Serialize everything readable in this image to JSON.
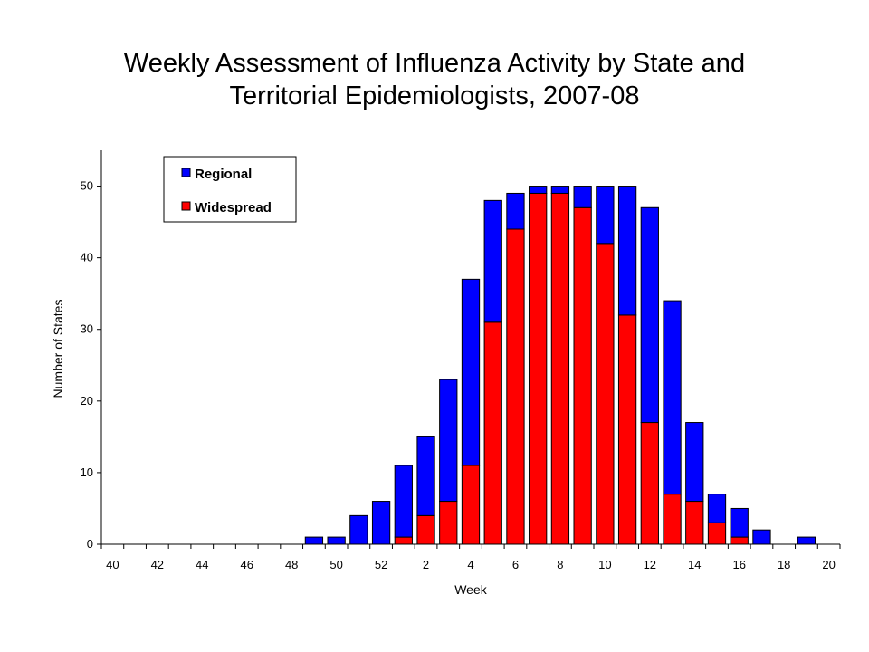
{
  "chart_data": {
    "type": "bar",
    "stacked": true,
    "title_line1": "Weekly Assessment of Influenza Activity by State and",
    "title_line2": "Territorial Epidemiologists, 2007-08",
    "xlabel": "Week",
    "ylabel": "Number of States",
    "ylim": [
      0,
      55
    ],
    "yticks": [
      0,
      10,
      20,
      30,
      40,
      50
    ],
    "grid": false,
    "legend_position": "top-left",
    "categories": [
      "40",
      "41",
      "42",
      "43",
      "44",
      "45",
      "46",
      "47",
      "48",
      "49",
      "50",
      "51",
      "52",
      "1",
      "2",
      "3",
      "4",
      "5",
      "6",
      "7",
      "8",
      "9",
      "10",
      "11",
      "12",
      "13",
      "14",
      "15",
      "16",
      "17",
      "18",
      "19",
      "20"
    ],
    "xtick_labels": [
      "40",
      "42",
      "44",
      "46",
      "48",
      "50",
      "52",
      "2",
      "4",
      "6",
      "8",
      "10",
      "12",
      "14",
      "16",
      "18",
      "20"
    ],
    "series": [
      {
        "name": "Regional",
        "color": "#0000ff",
        "values": [
          0,
          0,
          0,
          0,
          0,
          0,
          0,
          0,
          0,
          1,
          1,
          4,
          6,
          10,
          11,
          17,
          26,
          17,
          5,
          1,
          1,
          3,
          8,
          18,
          30,
          27,
          11,
          4,
          4,
          2,
          0,
          1,
          0
        ]
      },
      {
        "name": "Widespread",
        "color": "#ff0000",
        "values": [
          0,
          0,
          0,
          0,
          0,
          0,
          0,
          0,
          0,
          0,
          0,
          0,
          0,
          1,
          4,
          6,
          11,
          31,
          44,
          49,
          49,
          47,
          42,
          32,
          17,
          7,
          6,
          3,
          1,
          0,
          0,
          0,
          0
        ]
      }
    ]
  }
}
